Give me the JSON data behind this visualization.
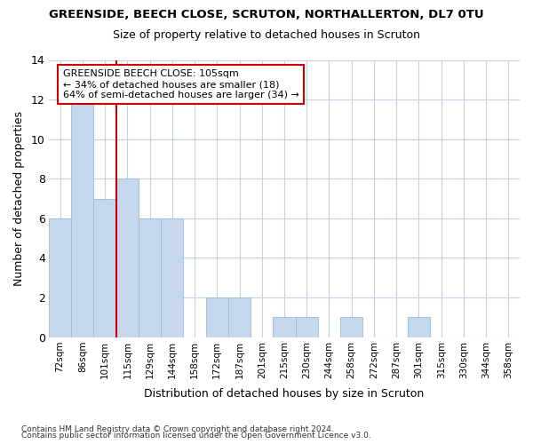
{
  "title1": "GREENSIDE, BEECH CLOSE, SCRUTON, NORTHALLERTON, DL7 0TU",
  "title2": "Size of property relative to detached houses in Scruton",
  "xlabel": "Distribution of detached houses by size in Scruton",
  "ylabel": "Number of detached properties",
  "categories": [
    "72sqm",
    "86sqm",
    "101sqm",
    "115sqm",
    "129sqm",
    "144sqm",
    "158sqm",
    "172sqm",
    "187sqm",
    "201sqm",
    "215sqm",
    "230sqm",
    "244sqm",
    "258sqm",
    "272sqm",
    "287sqm",
    "301sqm",
    "315sqm",
    "330sqm",
    "344sqm",
    "358sqm"
  ],
  "values": [
    6,
    12,
    7,
    8,
    6,
    6,
    0,
    2,
    2,
    0,
    1,
    1,
    0,
    1,
    0,
    0,
    1,
    0,
    0,
    0,
    0
  ],
  "bar_color": "#c5d8ed",
  "bar_edge_color": "#9bbbd6",
  "vline_color": "#cc0000",
  "annotation_text": "GREENSIDE BEECH CLOSE: 105sqm\n← 34% of detached houses are smaller (18)\n64% of semi-detached houses are larger (34) →",
  "annotation_box_color": "white",
  "annotation_box_edge_color": "#cc0000",
  "ylim": [
    0,
    14
  ],
  "yticks": [
    0,
    2,
    4,
    6,
    8,
    10,
    12,
    14
  ],
  "footnote1": "Contains HM Land Registry data © Crown copyright and database right 2024.",
  "footnote2": "Contains public sector information licensed under the Open Government Licence v3.0.",
  "background_color": "white",
  "grid_color": "#c8d0e0"
}
